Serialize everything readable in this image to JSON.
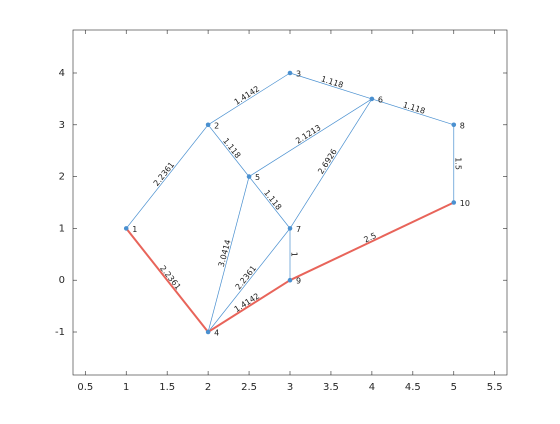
{
  "chart_data": {
    "type": "graph",
    "nodes": [
      {
        "name": "1",
        "x": 1,
        "y": 1
      },
      {
        "name": "2",
        "x": 2,
        "y": 3
      },
      {
        "name": "3",
        "x": 3,
        "y": 4
      },
      {
        "name": "4",
        "x": 2,
        "y": -1
      },
      {
        "name": "5",
        "x": 2.5,
        "y": 2
      },
      {
        "name": "6",
        "x": 4,
        "y": 3.5
      },
      {
        "name": "7",
        "x": 3,
        "y": 1
      },
      {
        "name": "8",
        "x": 5,
        "y": 3
      },
      {
        "name": "9",
        "x": 3,
        "y": 0
      },
      {
        "name": "10",
        "x": 5,
        "y": 1.5
      }
    ],
    "edges": [
      {
        "source": "1",
        "target": "2",
        "weight": 2.2361
      },
      {
        "source": "1",
        "target": "4",
        "weight": 2.2361,
        "highlighted": true
      },
      {
        "source": "2",
        "target": "3",
        "weight": 1.4142
      },
      {
        "source": "2",
        "target": "5",
        "weight": 1.118
      },
      {
        "source": "3",
        "target": "6",
        "weight": 1.118
      },
      {
        "source": "4",
        "target": "5",
        "weight": 3.0414
      },
      {
        "source": "4",
        "target": "7",
        "weight": 2.2361
      },
      {
        "source": "4",
        "target": "9",
        "weight": 1.4142,
        "highlighted": true
      },
      {
        "source": "5",
        "target": "6",
        "weight": 2.1213
      },
      {
        "source": "5",
        "target": "7",
        "weight": 1.118
      },
      {
        "source": "6",
        "target": "7",
        "weight": 2.6926
      },
      {
        "source": "6",
        "target": "8",
        "weight": 1.118
      },
      {
        "source": "7",
        "target": "9",
        "weight": 1
      },
      {
        "source": "8",
        "target": "10",
        "weight": 1.5
      },
      {
        "source": "9",
        "target": "10",
        "weight": 2.5,
        "highlighted": true
      }
    ],
    "color": "#4a90d0",
    "highlight_color": "#e8645a",
    "xlim": [
      0.35,
      5.65
    ],
    "ylim": [
      -1.83,
      4.83
    ],
    "xticks": [
      0.5,
      1,
      1.5,
      2,
      2.5,
      3,
      3.5,
      4,
      4.5,
      5,
      5.5
    ],
    "yticks": [
      -1,
      0,
      1,
      2,
      3,
      4
    ],
    "grid": false
  }
}
